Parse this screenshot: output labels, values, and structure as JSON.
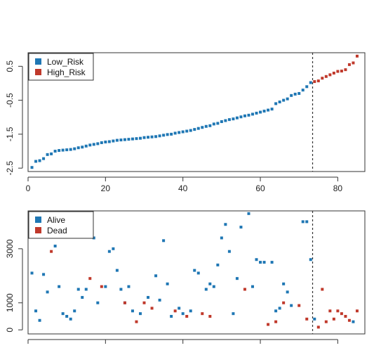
{
  "chart_data": [
    {
      "type": "scatter",
      "panel": "risk-score",
      "xlim": [
        0,
        87
      ],
      "ylim": [
        -2.6,
        0.9
      ],
      "x_ticks": [
        0,
        20,
        40,
        60,
        80
      ],
      "y_ticks": [
        -2.5,
        -1.5,
        -0.5,
        0.5
      ],
      "x_tick_labels": [
        "0",
        "20",
        "40",
        "60",
        "80"
      ],
      "y_tick_labels": [
        "-2.5",
        "-1.5",
        "-0.5",
        "0.5"
      ],
      "cutoff_x": 73.5,
      "grid": false,
      "legend_position": "top-left",
      "legend": [
        {
          "label": "Low_Risk",
          "color": "#1f77b4"
        },
        {
          "label": "High_Risk",
          "color": "#c0392b"
        }
      ],
      "series": [
        {
          "name": "Low_Risk",
          "color": "#1f77b4",
          "x": [
            1,
            2,
            3,
            4,
            5,
            6,
            7,
            8,
            9,
            10,
            11,
            12,
            13,
            14,
            15,
            16,
            17,
            18,
            19,
            20,
            21,
            22,
            23,
            24,
            25,
            26,
            27,
            28,
            29,
            30,
            31,
            32,
            33,
            34,
            35,
            36,
            37,
            38,
            39,
            40,
            41,
            42,
            43,
            44,
            45,
            46,
            47,
            48,
            49,
            50,
            51,
            52,
            53,
            54,
            55,
            56,
            57,
            58,
            59,
            60,
            61,
            62,
            63,
            64,
            65,
            66,
            67,
            68,
            69,
            70,
            71,
            72,
            73
          ],
          "y": [
            -2.48,
            -2.3,
            -2.28,
            -2.22,
            -2.1,
            -2.08,
            -2.0,
            -1.98,
            -1.97,
            -1.96,
            -1.95,
            -1.93,
            -1.9,
            -1.88,
            -1.85,
            -1.82,
            -1.8,
            -1.78,
            -1.75,
            -1.73,
            -1.72,
            -1.7,
            -1.68,
            -1.67,
            -1.66,
            -1.65,
            -1.64,
            -1.63,
            -1.62,
            -1.6,
            -1.59,
            -1.58,
            -1.57,
            -1.55,
            -1.53,
            -1.51,
            -1.5,
            -1.47,
            -1.45,
            -1.43,
            -1.41,
            -1.39,
            -1.36,
            -1.33,
            -1.3,
            -1.27,
            -1.25,
            -1.2,
            -1.18,
            -1.13,
            -1.1,
            -1.07,
            -1.05,
            -1.02,
            -0.99,
            -0.96,
            -0.94,
            -0.91,
            -0.88,
            -0.85,
            -0.82,
            -0.79,
            -0.76,
            -0.6,
            -0.55,
            -0.5,
            -0.46,
            -0.36,
            -0.32,
            -0.3,
            -0.2,
            -0.1,
            0.02
          ]
        },
        {
          "name": "High_Risk",
          "color": "#c0392b",
          "x": [
            74,
            75,
            76,
            77,
            78,
            79,
            80,
            81,
            82,
            83,
            84,
            85
          ],
          "y": [
            0.05,
            0.07,
            0.15,
            0.2,
            0.25,
            0.3,
            0.35,
            0.36,
            0.4,
            0.55,
            0.6,
            0.8
          ]
        }
      ]
    },
    {
      "type": "scatter",
      "panel": "survival-time",
      "xlim": [
        0,
        87
      ],
      "ylim": [
        -150,
        4400
      ],
      "x_ticks": [
        0,
        20,
        40,
        60,
        80
      ],
      "y_ticks": [
        0,
        1000,
        3000
      ],
      "y_tick_labels": [
        "0",
        "1000",
        "3000"
      ],
      "cutoff_x": 73.5,
      "grid": false,
      "legend_position": "top-left",
      "legend": [
        {
          "label": "Alive",
          "color": "#1f77b4"
        },
        {
          "label": "Dead",
          "color": "#c0392b"
        }
      ],
      "series": [
        {
          "name": "Alive",
          "color": "#1f77b4",
          "x": [
            1,
            2,
            3,
            4,
            5,
            7,
            8,
            9,
            10,
            11,
            12,
            13,
            14,
            15,
            17,
            18,
            20,
            21,
            22,
            23,
            24,
            25,
            26,
            27,
            29,
            31,
            33,
            34,
            35,
            36,
            37,
            39,
            40,
            42,
            43,
            44,
            46,
            47,
            48,
            49,
            50,
            51,
            52,
            53,
            54,
            55,
            57,
            58,
            59,
            60,
            61,
            63,
            64,
            65,
            66,
            67,
            68,
            71,
            72,
            73,
            74,
            84
          ],
          "x_note": "",
          "y": [
            2100,
            700,
            350,
            2050,
            1400,
            3100,
            1600,
            600,
            500,
            400,
            700,
            1500,
            1200,
            1500,
            3400,
            1000,
            1600,
            2900,
            3000,
            2200,
            1500,
            1000,
            1600,
            700,
            600,
            1200,
            2000,
            1100,
            3300,
            1700,
            500,
            800,
            600,
            700,
            2200,
            2100,
            1500,
            1700,
            1600,
            2400,
            3400,
            3900,
            2900,
            600,
            1900,
            3800,
            4300,
            1600,
            2600,
            2500,
            2500,
            2500,
            700,
            800,
            1700,
            1400,
            900,
            4000,
            4000,
            2600,
            400,
            300
          ]
        },
        {
          "name": "Dead",
          "color": "#c0392b",
          "x": [
            6,
            16,
            19,
            25,
            28,
            30,
            32,
            38,
            41,
            45,
            47,
            56,
            62,
            64,
            66,
            70,
            72,
            75,
            76,
            77,
            78,
            79,
            80,
            81,
            82,
            83,
            85
          ],
          "y": [
            2900,
            1900,
            1600,
            1000,
            300,
            1000,
            800,
            700,
            500,
            600,
            500,
            1500,
            200,
            300,
            1000,
            900,
            400,
            100,
            1500,
            300,
            700,
            400,
            700,
            600,
            500,
            350,
            700
          ]
        }
      ]
    }
  ]
}
